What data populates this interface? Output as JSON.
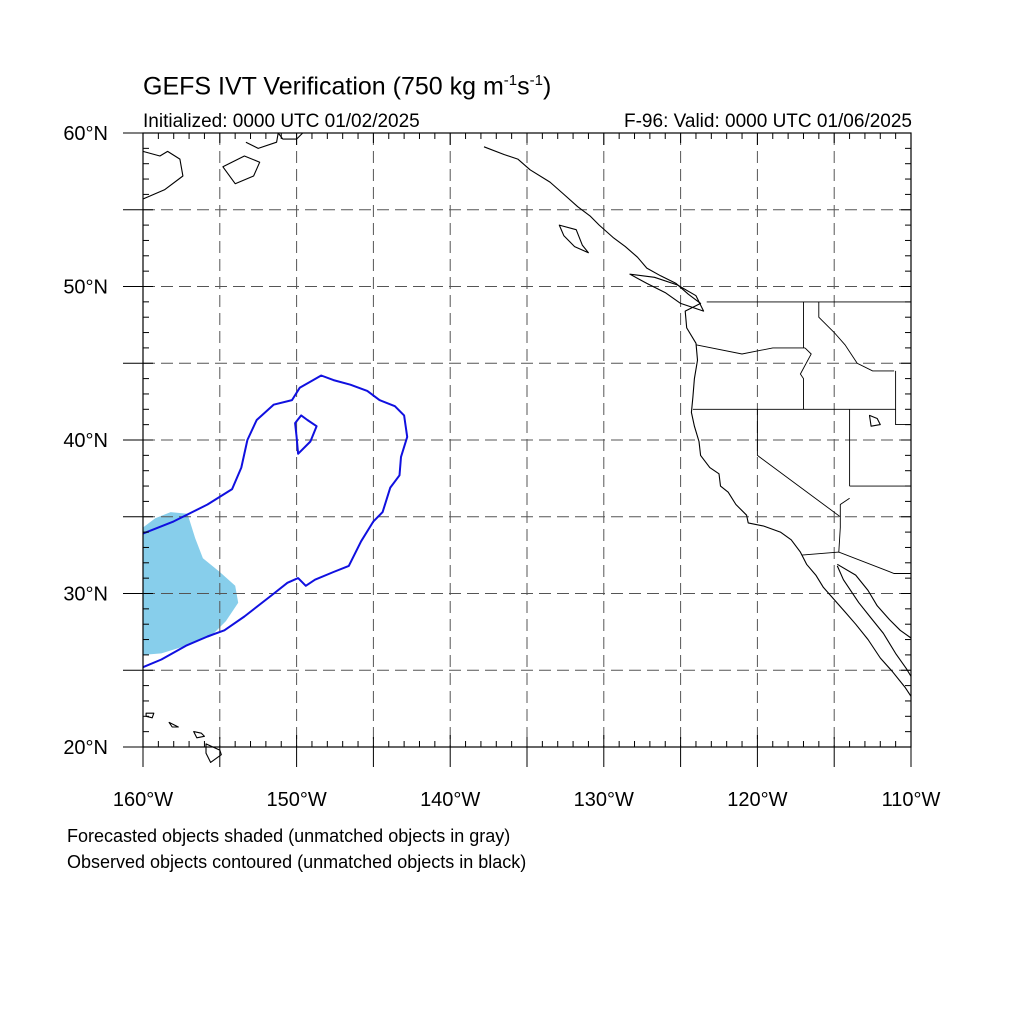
{
  "title": {
    "main": "GEFS IVT Verification (750 kg m",
    "exp1": "-1",
    "mid": "s",
    "exp2": "-1",
    "close": ")"
  },
  "subtitle": {
    "left": "Initialized: 0000 UTC 01/02/2025",
    "right": "F-96: Valid: 0000 UTC 01/06/2025"
  },
  "axes": {
    "lon_range": [
      -160,
      -110
    ],
    "lat_range": [
      20,
      60
    ],
    "lon_labels": [
      {
        "value": -160,
        "text": "160°W"
      },
      {
        "value": -150,
        "text": "150°W"
      },
      {
        "value": -140,
        "text": "140°W"
      },
      {
        "value": -130,
        "text": "130°W"
      },
      {
        "value": -120,
        "text": "120°W"
      },
      {
        "value": -110,
        "text": "110°W"
      }
    ],
    "lat_labels": [
      {
        "value": 20,
        "text": "20°N"
      },
      {
        "value": 30,
        "text": "30°N"
      },
      {
        "value": 40,
        "text": "40°N"
      },
      {
        "value": 50,
        "text": "50°N"
      },
      {
        "value": 60,
        "text": "60°N"
      }
    ],
    "grid_lon_step": 5,
    "grid_lat_step": 5
  },
  "colors": {
    "forecast_fill": "#87ceeb",
    "observed_contour": "#1010e0",
    "coast": "#000000",
    "grid": "#555555"
  },
  "footer": {
    "line1": "Forecasted objects shaded (unmatched objects in gray)",
    "line2": "Observed objects contoured (unmatched objects in black)"
  },
  "forecast_object": [
    [
      -160,
      34.3
    ],
    [
      -159.2,
      34.9
    ],
    [
      -158.2,
      35.3
    ],
    [
      -157.1,
      35.2
    ],
    [
      -156.6,
      33.6
    ],
    [
      -156.1,
      32.3
    ],
    [
      -155.0,
      31.4
    ],
    [
      -154.0,
      30.5
    ],
    [
      -153.8,
      29.4
    ],
    [
      -154.6,
      28.2
    ],
    [
      -155.6,
      27.2
    ],
    [
      -157.2,
      26.6
    ],
    [
      -158.8,
      26.1
    ],
    [
      -160,
      26.0
    ]
  ],
  "observed_contour_outer": [
    [
      -160,
      33.9
    ],
    [
      -158.0,
      34.7
    ],
    [
      -155.8,
      35.8
    ],
    [
      -154.2,
      36.8
    ],
    [
      -153.6,
      38.2
    ],
    [
      -153.2,
      40.0
    ],
    [
      -152.6,
      41.3
    ],
    [
      -151.5,
      42.3
    ],
    [
      -150.3,
      42.6
    ],
    [
      -149.8,
      43.4
    ],
    [
      -148.4,
      44.2
    ],
    [
      -147.6,
      43.9
    ],
    [
      -146.5,
      43.6
    ],
    [
      -145.4,
      43.2
    ],
    [
      -144.6,
      42.6
    ],
    [
      -143.6,
      42.2
    ],
    [
      -143.0,
      41.6
    ],
    [
      -142.8,
      40.2
    ],
    [
      -143.2,
      38.9
    ],
    [
      -143.3,
      37.7
    ],
    [
      -143.9,
      36.9
    ],
    [
      -144.4,
      35.3
    ],
    [
      -145.0,
      34.7
    ],
    [
      -145.8,
      33.4
    ],
    [
      -146.6,
      31.8
    ],
    [
      -147.6,
      31.4
    ],
    [
      -148.8,
      30.9
    ],
    [
      -149.4,
      30.5
    ],
    [
      -149.9,
      31.0
    ],
    [
      -150.6,
      30.7
    ],
    [
      -151.6,
      29.9
    ],
    [
      -153.4,
      28.5
    ],
    [
      -154.7,
      27.6
    ],
    [
      -155.8,
      27.2
    ],
    [
      -157.2,
      26.6
    ],
    [
      -158.8,
      25.7
    ],
    [
      -160,
      25.2
    ]
  ],
  "observed_contour_inner": [
    [
      -149.9,
      39.1
    ],
    [
      -149.1,
      39.9
    ],
    [
      -148.7,
      40.9
    ],
    [
      -149.3,
      41.3
    ],
    [
      -149.7,
      41.6
    ],
    [
      -150.1,
      41.1
    ],
    [
      -150.0,
      40.2
    ],
    [
      -149.9,
      39.1
    ]
  ],
  "coastlines": {
    "west_coast": [
      [
        -137.8,
        59.1
      ],
      [
        -136.5,
        58.6
      ],
      [
        -135.6,
        58.3
      ],
      [
        -134.8,
        57.6
      ],
      [
        -133.5,
        56.8
      ],
      [
        -132.6,
        56.0
      ],
      [
        -131.7,
        55.2
      ],
      [
        -130.9,
        54.6
      ],
      [
        -130.3,
        54.0
      ],
      [
        -129.4,
        53.2
      ],
      [
        -128.6,
        52.6
      ],
      [
        -127.8,
        51.9
      ],
      [
        -127.2,
        51.2
      ],
      [
        -126.3,
        50.7
      ],
      [
        -125.3,
        50.2
      ],
      [
        -124.5,
        49.5
      ],
      [
        -123.7,
        48.9
      ],
      [
        -124.7,
        48.4
      ],
      [
        -124.6,
        47.3
      ],
      [
        -124.0,
        46.3
      ],
      [
        -123.9,
        45.2
      ],
      [
        -124.1,
        44.0
      ],
      [
        -124.2,
        42.8
      ],
      [
        -124.3,
        41.8
      ],
      [
        -124.1,
        40.9
      ],
      [
        -123.8,
        39.9
      ],
      [
        -123.7,
        39.0
      ],
      [
        -123.1,
        38.2
      ],
      [
        -122.5,
        37.8
      ],
      [
        -122.4,
        37.0
      ],
      [
        -121.9,
        36.6
      ],
      [
        -121.4,
        35.8
      ],
      [
        -120.7,
        35.1
      ],
      [
        -120.6,
        34.6
      ],
      [
        -119.6,
        34.4
      ],
      [
        -118.5,
        34.0
      ],
      [
        -117.8,
        33.5
      ],
      [
        -117.2,
        32.7
      ],
      [
        -116.8,
        31.9
      ],
      [
        -116.2,
        31.2
      ],
      [
        -115.7,
        30.4
      ],
      [
        -115.0,
        29.6
      ],
      [
        -114.3,
        28.8
      ],
      [
        -113.6,
        28.0
      ],
      [
        -112.8,
        27.0
      ],
      [
        -112.0,
        25.8
      ],
      [
        -111.2,
        24.9
      ],
      [
        -110.4,
        23.9
      ],
      [
        -110,
        23.3
      ]
    ],
    "baja_gulf": [
      [
        -114.8,
        31.8
      ],
      [
        -114.4,
        30.9
      ],
      [
        -113.4,
        29.4
      ],
      [
        -112.6,
        28.4
      ],
      [
        -111.8,
        27.4
      ],
      [
        -111.0,
        26.1
      ],
      [
        -110.3,
        25.1
      ],
      [
        -110,
        24.6
      ]
    ],
    "mainland_gulf": [
      [
        -114.8,
        31.9
      ],
      [
        -113.6,
        31.2
      ],
      [
        -112.8,
        30.2
      ],
      [
        -112.2,
        29.2
      ],
      [
        -111.4,
        28.3
      ],
      [
        -110.7,
        27.6
      ],
      [
        -110,
        27.1
      ]
    ],
    "alaska": [
      [
        -160,
        55.7
      ],
      [
        -158.6,
        56.3
      ],
      [
        -157.4,
        57.2
      ],
      [
        -157.6,
        58.3
      ],
      [
        -158.4,
        58.8
      ],
      [
        -158.9,
        58.5
      ],
      [
        -160,
        58.8
      ]
    ],
    "kenai": [
      [
        -153.3,
        59.4
      ],
      [
        -152.5,
        59.0
      ],
      [
        -151.3,
        59.4
      ],
      [
        -151.2,
        60.0
      ],
      [
        -150.9,
        59.6
      ],
      [
        -150.0,
        59.6
      ],
      [
        -149.6,
        60.0
      ]
    ],
    "kodiak": [
      [
        -154.8,
        57.8
      ],
      [
        -153.4,
        58.5
      ],
      [
        -152.4,
        58.1
      ],
      [
        -152.8,
        57.2
      ],
      [
        -154.0,
        56.7
      ],
      [
        -154.8,
        57.8
      ]
    ],
    "vancouver_is": [
      [
        -128.3,
        50.8
      ],
      [
        -127.2,
        50.2
      ],
      [
        -126.0,
        49.6
      ],
      [
        -125.0,
        48.9
      ],
      [
        -123.5,
        48.4
      ],
      [
        -124.0,
        49.4
      ],
      [
        -125.2,
        50.1
      ],
      [
        -126.7,
        50.6
      ],
      [
        -128.3,
        50.8
      ]
    ],
    "haida_gwaii": [
      [
        -132.9,
        54.0
      ],
      [
        -131.8,
        53.7
      ],
      [
        -131.4,
        52.7
      ],
      [
        -131.0,
        52.2
      ],
      [
        -131.9,
        52.6
      ],
      [
        -132.6,
        53.3
      ],
      [
        -132.9,
        54.0
      ]
    ],
    "hawaii_big": [
      [
        -155.9,
        20.2
      ],
      [
        -155.0,
        19.8
      ],
      [
        -154.9,
        19.5
      ],
      [
        -155.6,
        19.0
      ],
      [
        -155.9,
        19.6
      ],
      [
        -155.9,
        20.2
      ]
    ],
    "maui": [
      [
        -156.7,
        21.0
      ],
      [
        -156.2,
        20.9
      ],
      [
        -156.0,
        20.7
      ],
      [
        -156.5,
        20.6
      ],
      [
        -156.7,
        21.0
      ]
    ],
    "oahu": [
      [
        -158.3,
        21.6
      ],
      [
        -157.7,
        21.3
      ],
      [
        -158.1,
        21.3
      ],
      [
        -158.3,
        21.6
      ]
    ],
    "kauai": [
      [
        -159.8,
        22.2
      ],
      [
        -159.3,
        22.2
      ],
      [
        -159.4,
        21.9
      ],
      [
        -159.8,
        22.0
      ],
      [
        -159.8,
        22.2
      ]
    ],
    "great_salt_lake": [
      [
        -112.7,
        41.6
      ],
      [
        -112.2,
        41.4
      ],
      [
        -112.0,
        41.0
      ],
      [
        -112.6,
        40.9
      ],
      [
        -112.7,
        41.6
      ]
    ]
  },
  "borders": {
    "us_canada": [
      [
        -123.3,
        49.0
      ],
      [
        -110,
        49.0
      ]
    ],
    "us_mexico": [
      [
        -117.1,
        32.5
      ],
      [
        -114.7,
        32.7
      ],
      [
        -111.1,
        31.3
      ],
      [
        -110,
        31.3
      ]
    ],
    "wa_or": [
      [
        -124.0,
        46.2
      ],
      [
        -121.0,
        45.6
      ],
      [
        -119.0,
        46.0
      ],
      [
        -116.9,
        46.0
      ]
    ],
    "wa_id": [
      [
        -117.0,
        49.0
      ],
      [
        -117.0,
        46.0
      ]
    ],
    "or_ca_nv_id": [
      [
        -124.2,
        42.0
      ],
      [
        -111.0,
        42.0
      ]
    ],
    "or_id": [
      [
        -116.9,
        46.0
      ],
      [
        -116.5,
        45.6
      ],
      [
        -117.2,
        44.3
      ],
      [
        -117.0,
        44.0
      ],
      [
        -117.0,
        42.0
      ]
    ],
    "id_mt": [
      [
        -116.0,
        49.0
      ],
      [
        -116.0,
        48.0
      ],
      [
        -115.0,
        47.0
      ],
      [
        -114.3,
        46.2
      ],
      [
        -113.5,
        45.0
      ],
      [
        -112.5,
        44.5
      ],
      [
        -111.1,
        44.5
      ]
    ],
    "ca_nv": [
      [
        -120.0,
        42.0
      ],
      [
        -120.0,
        39.0
      ],
      [
        -114.6,
        35.0
      ],
      [
        -114.6,
        34.3
      ],
      [
        -114.7,
        32.7
      ]
    ],
    "nv_ut": [
      [
        -114.0,
        42.0
      ],
      [
        -114.0,
        37.0
      ]
    ],
    "az_ut": [
      [
        -114.0,
        37.0
      ],
      [
        -110,
        37.0
      ]
    ],
    "nv_az": [
      [
        -114.0,
        36.2
      ],
      [
        -114.6,
        35.8
      ],
      [
        -114.6,
        35.0
      ]
    ],
    "wy": [
      [
        -111.0,
        44.5
      ],
      [
        -111.0,
        41.0
      ],
      [
        -110,
        41.0
      ]
    ]
  }
}
